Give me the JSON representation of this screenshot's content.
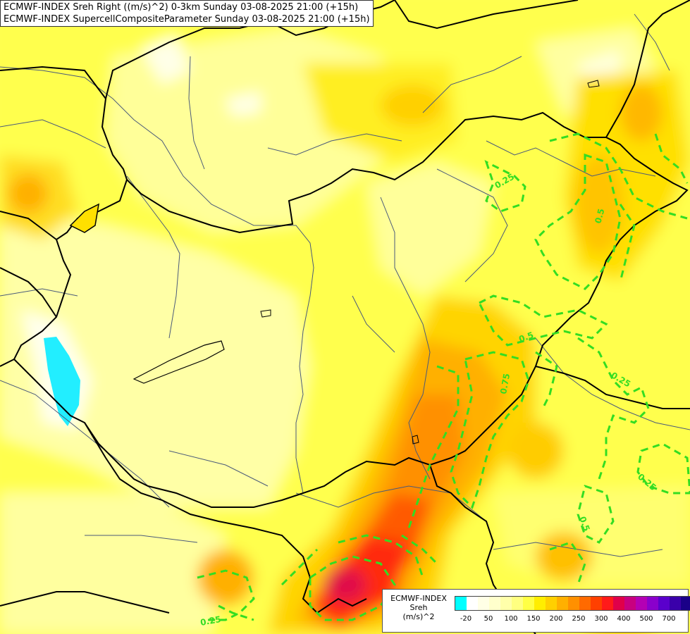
{
  "header": {
    "line1": "ECMWF-INDEX Sreh Right ((m/s)^2) 0-3km Sunday 03-08-2025 21:00 (+15h)",
    "line2": "ECMWF-INDEX SupercellCompositeParameter Sunday 03-08-2025 21:00 (+15h)"
  },
  "legend": {
    "title_line1": "ECMWF-INDEX",
    "title_line2": "Sreh",
    "title_line3": "(m/s)^2",
    "colors": [
      "#00ffff",
      "#ffffff",
      "#ffffe6",
      "#ffffcc",
      "#ffffaa",
      "#ffff80",
      "#ffff44",
      "#ffee00",
      "#ffd000",
      "#ffb000",
      "#ff9000",
      "#ff6a00",
      "#ff4000",
      "#ff1a1a",
      "#e0004a",
      "#c80080",
      "#b400b4",
      "#8a00cc",
      "#5a00cc",
      "#3a00aa",
      "#1a0088"
    ],
    "ticks": [
      "-20",
      "50",
      "100",
      "150",
      "200",
      "250",
      "300",
      "400",
      "500",
      "700"
    ]
  },
  "contour_labels": [
    "0.25",
    "0.5",
    "0.5",
    "0.75",
    "0.25",
    "0.25",
    "0.5",
    "0.25"
  ],
  "colors": {
    "contour": "#33dd22",
    "border": "#000000",
    "river": "#556688",
    "lake": "#00e5ff"
  }
}
